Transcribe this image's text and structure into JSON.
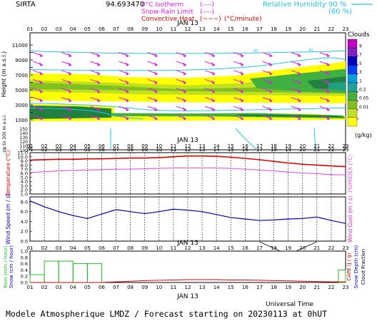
{
  "header": {
    "station": "SIRTA",
    "coords": "94.693470",
    "legend_left": [
      {
        "label": "0°C isotherm",
        "swatch": "(----)",
        "color": "#e020e0"
      },
      {
        "label": "Snow-Rain Limit",
        "swatch": "(----)",
        "color": "#e020e0"
      },
      {
        "label": "Convective Heat.",
        "swatch": "(~~~)",
        "color": "#e00000"
      }
    ],
    "convective_unit": "(°C/minute)",
    "legend_right": [
      {
        "label": "Relative Humidity",
        "value": "90 %",
        "color": "#20c8e0"
      },
      {
        "label": "",
        "value": "(60 %)",
        "color": "#20c8e0"
      }
    ]
  },
  "date_label": "JAN 13",
  "footer": {
    "axis_title": "Universal Time",
    "caption": "Modele Atmospherique LMDZ / Forecast starting on 20230113 at 0hUT"
  },
  "colorbar": {
    "title": "Clouds",
    "unit": "(g/kg)",
    "levels": [
      "9",
      "7",
      "5",
      "3",
      "1",
      "0.2",
      "0.05",
      "0.01"
    ],
    "colors": [
      "#c000c0",
      "#8020c0",
      "#0000c0",
      "#0040ff",
      "#00a0e0",
      "#20a0a0",
      "#40b040",
      "#80c020",
      "#c0e020",
      "#ffff00"
    ]
  },
  "chart_data": [
    {
      "type": "heatmap",
      "panel": "Cloud water cross-section",
      "x": [
        "01",
        "02",
        "03",
        "04",
        "05",
        "06",
        "07",
        "08",
        "09",
        "10",
        "11",
        "12",
        "13",
        "14",
        "15",
        "16",
        "17",
        "18",
        "19",
        "20",
        "21",
        "22",
        "23"
      ],
      "ylabel": "Height (m a.s.l.)",
      "yticks_upper": [
        1000,
        2000,
        3000,
        4000,
        5000,
        6000,
        7000,
        8000,
        9000,
        10000,
        11000
      ],
      "yticks_lower": [
        100,
        110,
        120,
        130,
        140,
        150
      ],
      "yaxis_note": "Up to 200 m a.s.l.",
      "isoline_labels": [
        "60",
        "90"
      ]
    },
    {
      "type": "line",
      "panel": "Temperature / Humidex",
      "x": [
        "01",
        "02",
        "03",
        "04",
        "05",
        "06",
        "07",
        "08",
        "09",
        "10",
        "11",
        "12",
        "13",
        "14",
        "15",
        "16",
        "17",
        "18",
        "19",
        "20",
        "21",
        "22",
        "23"
      ],
      "ylabel": "Temperature (°C)",
      "ylabel_right": "HUMIDEX (°C)",
      "yticks": [
        "1.0",
        "2.0",
        "3.0",
        "4.0",
        "5.0",
        "6.0",
        "7.0",
        "8.0",
        "9.0",
        "10.0",
        "11.0"
      ],
      "ylim": [
        1.0,
        11.0
      ],
      "series": [
        {
          "name": "",
          "color": "#e00000",
          "values": [
            9.2,
            9.3,
            9.4,
            9.4,
            9.5,
            9.5,
            9.6,
            9.7,
            9.7,
            9.8,
            10.0,
            10.2,
            10.2,
            10.1,
            9.9,
            9.6,
            9.3,
            8.9,
            8.5,
            8.2,
            8.0,
            7.8,
            7.6
          ]
        },
        {
          "name": "",
          "color": "#e060e0",
          "values": [
            6.2,
            6.4,
            6.6,
            6.7,
            6.8,
            6.9,
            7.0,
            7.0,
            7.1,
            7.2,
            7.3,
            7.3,
            7.3,
            7.3,
            7.2,
            7.0,
            6.8,
            6.6,
            6.3,
            6.1,
            5.9,
            5.7,
            5.6
          ]
        }
      ]
    },
    {
      "type": "line",
      "panel": "Wind",
      "x": [
        "01",
        "02",
        "03",
        "04",
        "05",
        "06",
        "07",
        "08",
        "09",
        "10",
        "11",
        "12",
        "13",
        "14",
        "15",
        "16",
        "17",
        "18",
        "19",
        "20",
        "21",
        "22",
        "23"
      ],
      "ylabel": "Wind Speed (m / s)",
      "ylabel_right": "Wind Gust (m / s)",
      "yticks": [
        "0.0",
        "2.0",
        "4.0",
        "6.0",
        "8.0"
      ],
      "ylim": [
        0.0,
        9.0
      ],
      "series": [
        {
          "name": "",
          "color": "#0000c0",
          "values": [
            8.2,
            7.0,
            6.0,
            5.2,
            4.6,
            5.5,
            6.4,
            6.0,
            5.6,
            6.0,
            6.5,
            6.3,
            6.0,
            5.4,
            4.8,
            4.5,
            4.2,
            4.3,
            4.5,
            4.6,
            4.9,
            4.2,
            3.6
          ]
        }
      ]
    },
    {
      "type": "bar",
      "panel": "Precipitation",
      "x": [
        "01",
        "02",
        "03",
        "04",
        "05",
        "06",
        "07",
        "08",
        "09",
        "10",
        "11",
        "12",
        "13",
        "14",
        "15",
        "16",
        "17",
        "18",
        "19",
        "20",
        "21",
        "22",
        "23"
      ],
      "ylabel": "Rain (mm / hour)",
      "ylabel2": "Snow (cm / hour)",
      "ylabel_right": "CAPE (J / g)",
      "ylabel_right2": "Snow Depth (cm)",
      "ylabel_right3": "Cloud Fraction",
      "yticks": [
        "0.0",
        "0.2",
        "0.4",
        "0.6",
        "0.8",
        "1.0"
      ],
      "ylim": [
        0.0,
        1.0
      ],
      "series": [
        {
          "name": "",
          "color": "#20c020",
          "values": [
            0.25,
            0.68,
            0.68,
            0.6,
            0.6,
            0.0,
            0.0,
            0.0,
            0.0,
            0.0,
            0.0,
            0.0,
            0.0,
            0.0,
            0.0,
            0.0,
            0.0,
            0.0,
            0.0,
            0.0,
            0.0,
            0.0,
            0.4
          ]
        },
        {
          "name": "",
          "color": "#e00000",
          "values": [
            0.0,
            0.0,
            0.0,
            0.0,
            0.0,
            0.0,
            0.02,
            0.04,
            0.06,
            0.07,
            0.08,
            0.09,
            0.09,
            0.09,
            0.08,
            0.08,
            0.07,
            0.06,
            0.05,
            0.04,
            0.03,
            0.02,
            0.02
          ]
        }
      ]
    }
  ]
}
